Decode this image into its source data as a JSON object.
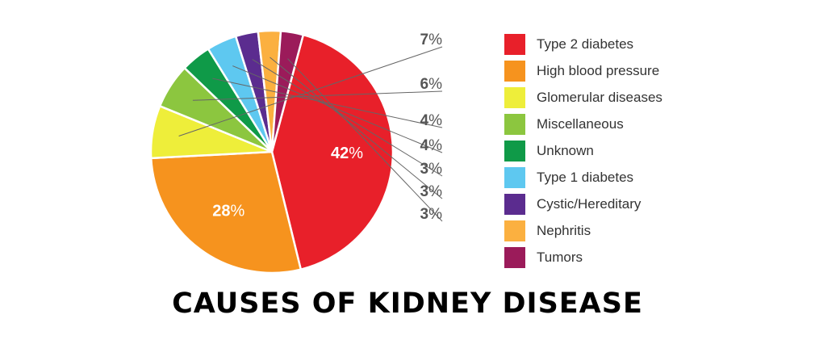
{
  "chart_data": {
    "type": "pie",
    "title": "CAUSES OF KIDNEY DISEASE",
    "slices": [
      {
        "label": "Type 2 diabetes",
        "value": 42,
        "display": "42",
        "color": "#e8202a"
      },
      {
        "label": "High blood pressure",
        "value": 28,
        "display": "28",
        "color": "#f6931e"
      },
      {
        "label": "Glomerular diseases",
        "value": 7,
        "display": "7",
        "color": "#eeee3a"
      },
      {
        "label": "Miscellaneous",
        "value": 6,
        "display": "6",
        "color": "#8cc63f"
      },
      {
        "label": "Unknown",
        "value": 4,
        "display": "4",
        "color": "#0f9a48"
      },
      {
        "label": "Type 1 diabetes",
        "value": 4,
        "display": "4",
        "color": "#5ec8f0"
      },
      {
        "label": "Cystic/Hereditary",
        "value": 3,
        "display": "3",
        "color": "#5b2c8f"
      },
      {
        "label": "Nephritis",
        "value": 3,
        "display": "3",
        "color": "#fbb040"
      },
      {
        "label": "Tumors",
        "value": 3,
        "display": "3",
        "color": "#9b1b5a"
      }
    ],
    "percent_symbol": "%",
    "inner_labels": [
      "42",
      "28"
    ],
    "callout_labels": [
      "7",
      "6",
      "4",
      "4",
      "3",
      "3",
      "3"
    ],
    "legend_position": "right"
  }
}
